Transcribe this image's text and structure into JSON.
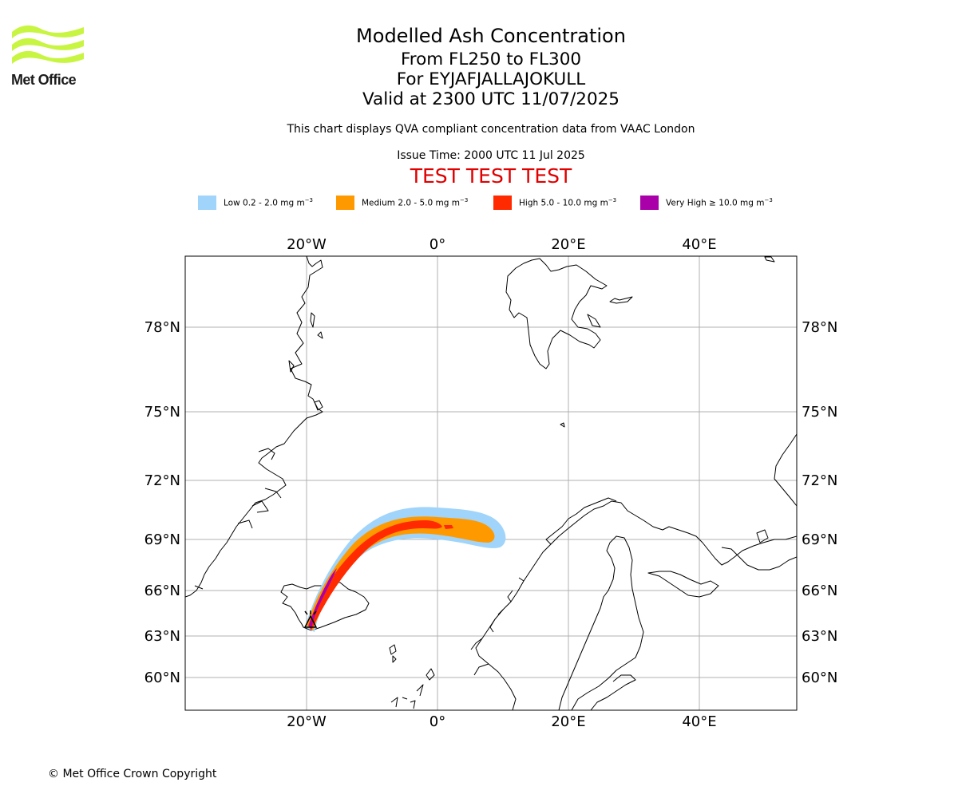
{
  "logo": {
    "text": "Met Office",
    "color": "#c8f542"
  },
  "titles": {
    "main": "Modelled Ash Concentration",
    "levels": "From FL250 to FL300",
    "volcano": "For EYJAFJALLAJOKULL",
    "valid": "Valid at 2300 UTC 11/07/2025"
  },
  "subnote": "This chart displays QVA compliant concentration data from VAAC London",
  "issue_time": "Issue Time: 2000 UTC 11 Jul 2025",
  "test_banner": {
    "text": "TEST TEST TEST",
    "color": "#e00000"
  },
  "legend": [
    {
      "label": "Low 0.2 - 2.0 mg m",
      "color": "#a0d4fa"
    },
    {
      "label": "Medium 2.0 - 5.0 mg m",
      "color": "#ff9900"
    },
    {
      "label": "High 5.0 - 10.0 mg m",
      "color": "#ff2a00"
    },
    {
      "label": "Very High ≥ 10.0 mg m",
      "color": "#aa00aa"
    }
  ],
  "legend_unit_exponent": "−3",
  "map": {
    "lon_ticks": [
      "20°W",
      "0°",
      "20°E",
      "40°E"
    ],
    "lat_ticks": [
      "78°N",
      "75°N",
      "72°N",
      "69°N",
      "66°N",
      "63°N",
      "60°N"
    ]
  },
  "copyright": "© Met Office Crown Copyright"
}
